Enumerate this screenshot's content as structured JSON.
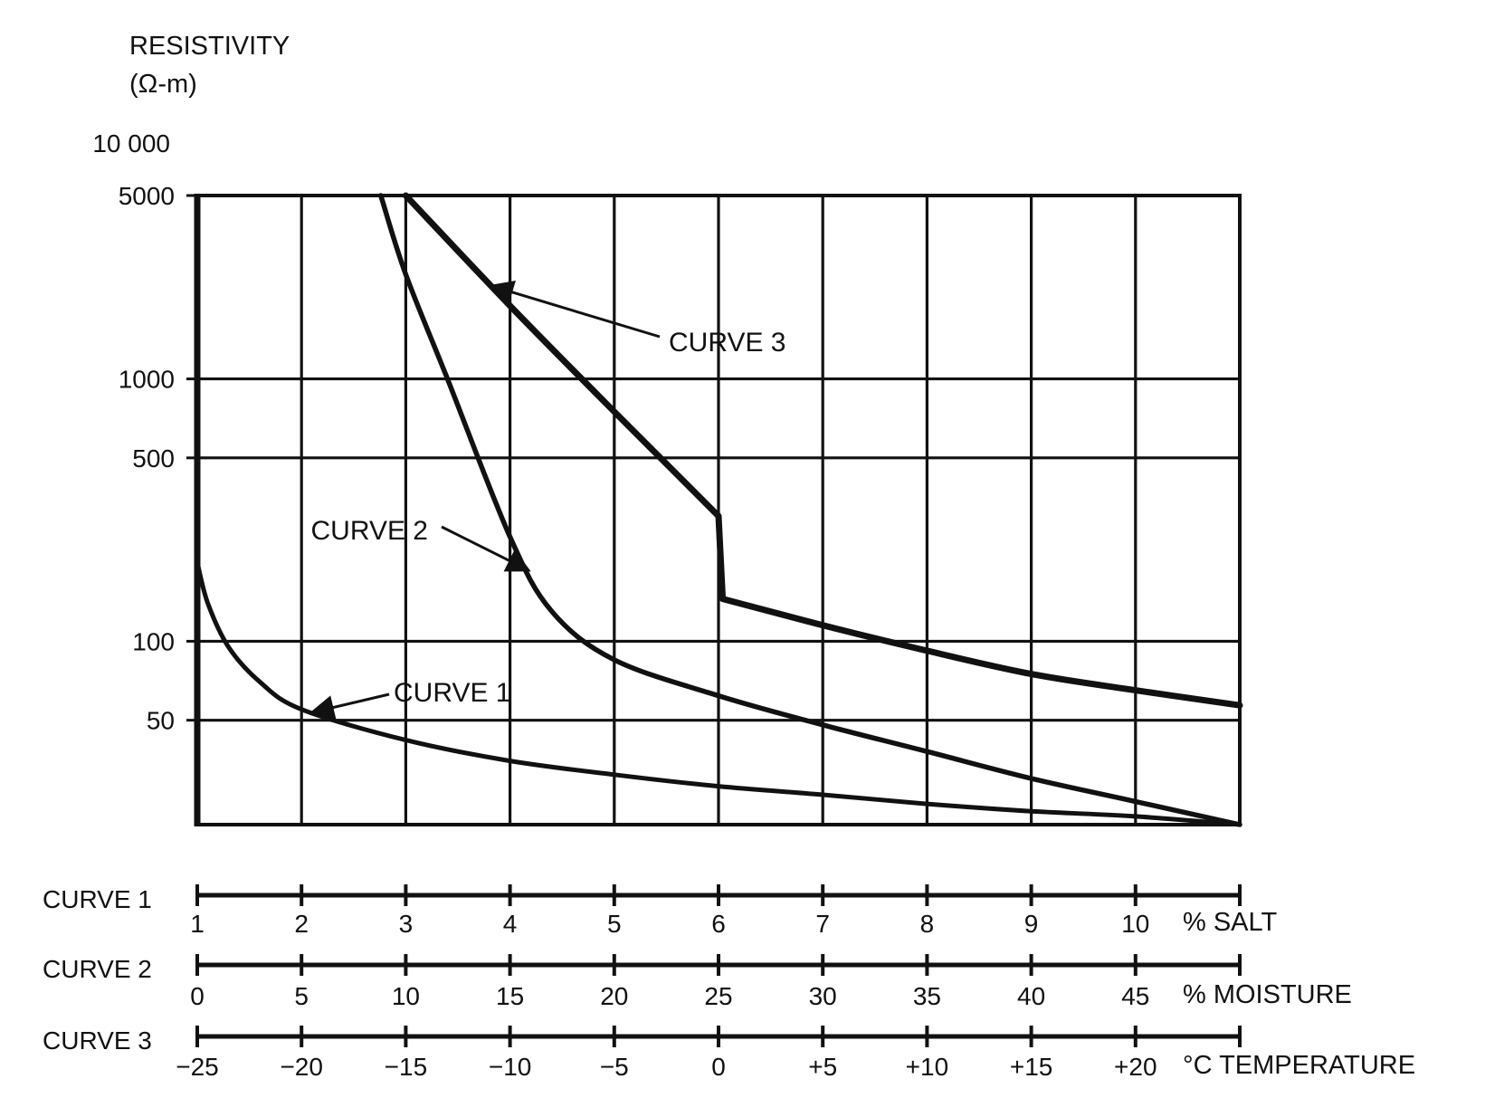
{
  "chart_data": {
    "type": "line",
    "y_axis": {
      "label_line1": "RESISTIVITY",
      "label_line2": "(Ω-m)",
      "scale": "log",
      "range": [
        20,
        5000
      ],
      "ticks": [
        {
          "value": 10000,
          "label": "10 000"
        },
        {
          "value": 5000,
          "label": "5000"
        },
        {
          "value": 1000,
          "label": "1000"
        },
        {
          "value": 500,
          "label": "500"
        },
        {
          "value": 100,
          "label": "100"
        },
        {
          "value": 50,
          "label": "50"
        }
      ]
    },
    "x_scales": [
      {
        "name": "CURVE 1",
        "unit": "% SALT",
        "ticks": [
          "1",
          "2",
          "3",
          "4",
          "5",
          "6",
          "7",
          "8",
          "9",
          "10",
          ""
        ]
      },
      {
        "name": "CURVE 2",
        "unit": "% MOISTURE",
        "ticks": [
          "0",
          "5",
          "10",
          "15",
          "20",
          "25",
          "30",
          "35",
          "40",
          "45",
          ""
        ]
      },
      {
        "name": "CURVE 3",
        "unit": "°C TEMPERATURE",
        "ticks": [
          "−25",
          "−20",
          "−15",
          "−10",
          "−5",
          "0",
          "+5",
          "+10",
          "+15",
          "+20",
          ""
        ]
      }
    ],
    "series": [
      {
        "name": "CURVE 1",
        "x_unit": "% salt",
        "points": [
          [
            1,
            200
          ],
          [
            1.1,
            140
          ],
          [
            1.3,
            95
          ],
          [
            1.6,
            70
          ],
          [
            2,
            55
          ],
          [
            3,
            42
          ],
          [
            4,
            35
          ],
          [
            5,
            31
          ],
          [
            6,
            28
          ],
          [
            7,
            26
          ],
          [
            8,
            24
          ],
          [
            9,
            22.5
          ],
          [
            10,
            21.5
          ],
          [
            11,
            20
          ]
        ]
      },
      {
        "name": "CURVE 2",
        "x_unit": "% moisture",
        "points": [
          [
            8.8,
            5000
          ],
          [
            10,
            2500
          ],
          [
            12,
            1000
          ],
          [
            15,
            250
          ],
          [
            17,
            130
          ],
          [
            20,
            85
          ],
          [
            25,
            62
          ],
          [
            30,
            48
          ],
          [
            35,
            38
          ],
          [
            40,
            30
          ],
          [
            45,
            24.5
          ],
          [
            50,
            20
          ]
        ]
      },
      {
        "name": "CURVE 3",
        "x_unit": "°C",
        "points": [
          [
            -15,
            5000
          ],
          [
            -10,
            1900
          ],
          [
            -5,
            750
          ],
          [
            0,
            300
          ],
          [
            0.2,
            145
          ],
          [
            5,
            115
          ],
          [
            10,
            92
          ],
          [
            15,
            75
          ],
          [
            20,
            65
          ],
          [
            25,
            57
          ]
        ]
      }
    ],
    "annotations": [
      {
        "text": "CURVE 3",
        "series": "CURVE 3"
      },
      {
        "text": "CURVE 2",
        "series": "CURVE 2"
      },
      {
        "text": "CURVE 1",
        "series": "CURVE 1"
      }
    ],
    "grid": true
  }
}
